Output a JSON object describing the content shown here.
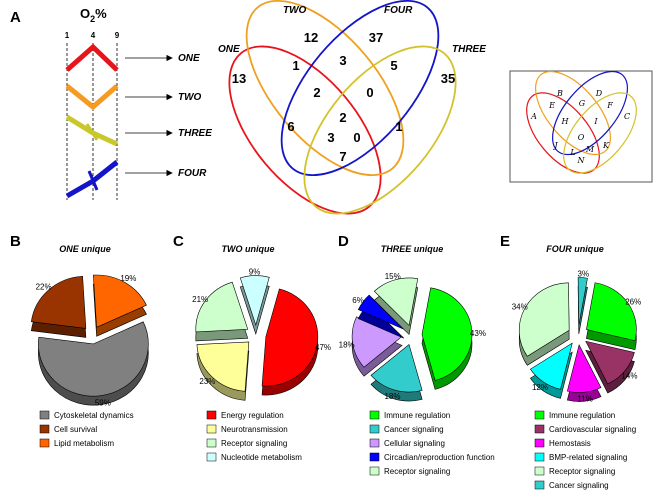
{
  "panel_letters": {
    "a": "A",
    "b": "B",
    "c": "C",
    "d": "D",
    "e": "E"
  },
  "oxygen": {
    "title": "O",
    "sub": "2",
    "suffix": "%",
    "ticks": [
      "1",
      "4",
      "9"
    ]
  },
  "patterns": [
    {
      "label": "ONE",
      "color": "#e8141b"
    },
    {
      "label": "TWO",
      "color": "#f79a21"
    },
    {
      "label": "THREE",
      "color": "#c8c82a"
    },
    {
      "label": "FOUR",
      "color": "#1414c8"
    }
  ],
  "venn": {
    "set_labels": [
      "ONE",
      "TWO",
      "FOUR",
      "THREE"
    ],
    "counts": [
      "13",
      "12",
      "37",
      "35",
      "1",
      "3",
      "5",
      "2",
      "0",
      "2",
      "6",
      "3",
      "0",
      "1",
      "7"
    ],
    "colors": {
      "ONE": "#e8141b",
      "TWO": "#f0a020",
      "FOUR": "#1414c8",
      "THREE": "#d4c22a"
    }
  },
  "inset_letters": [
    "A",
    "B",
    "C",
    "D",
    "E",
    "F",
    "G",
    "H",
    "I",
    "J",
    "K",
    "L",
    "M",
    "N",
    "O"
  ],
  "pies": [
    {
      "title": "ONE unique",
      "slices": [
        {
          "label": "Cytoskeletal dynamics",
          "pct": 59,
          "pct_text": "59%",
          "color": "#808080"
        },
        {
          "label": "Cell survival",
          "pct": 22,
          "pct_text": "22%",
          "color": "#993300"
        },
        {
          "label": "Lipid metabolism",
          "pct": 19,
          "pct_text": "19%",
          "color": "#ff6600"
        }
      ]
    },
    {
      "title": "TWO unique",
      "slices": [
        {
          "label": "Energy regulation",
          "pct": 47,
          "pct_text": "47%",
          "color": "#ff0000"
        },
        {
          "label": "Neurotransmission",
          "pct": 23,
          "pct_text": "23%",
          "color": "#ffff99"
        },
        {
          "label": "Receptor signaling",
          "pct": 21,
          "pct_text": "21%",
          "color": "#ccffcc"
        },
        {
          "label": "Nucleotide metabolism",
          "pct": 9,
          "pct_text": "9%",
          "color": "#ccffff"
        }
      ]
    },
    {
      "title": "THREE unique",
      "slices": [
        {
          "label": "Immune regulation",
          "pct": 43,
          "pct_text": "43%",
          "color": "#00ff00"
        },
        {
          "label": "Cancer signaling",
          "pct": 18,
          "pct_text": "18%",
          "color": "#33cccc"
        },
        {
          "label": "Cellular signaling",
          "pct": 18,
          "pct_text": "18%",
          "color": "#cc99ff"
        },
        {
          "label": "Circadian/reproduction function",
          "pct": 6,
          "pct_text": "6%",
          "color": "#0000ff"
        },
        {
          "label": "Receptor signaling",
          "pct": 15,
          "pct_text": "15%",
          "color": "#ccffcc"
        }
      ]
    },
    {
      "title": "FOUR unique",
      "slices": [
        {
          "label": "Immune regulation",
          "pct": 26,
          "pct_text": "26%",
          "color": "#00ff00"
        },
        {
          "label": "Cardiovascular signaling",
          "pct": 14,
          "pct_text": "14%",
          "color": "#993366"
        },
        {
          "label": "Hemostasis",
          "pct": 11,
          "pct_text": "11%",
          "color": "#ff00ff"
        },
        {
          "label": "BMP-related signaling",
          "pct": 12,
          "pct_text": "12%",
          "color": "#00ffff"
        },
        {
          "label": "Receptor signaling",
          "pct": 34,
          "pct_text": "34%",
          "color": "#ccffcc"
        },
        {
          "label": "Cancer signaling",
          "pct": 3,
          "pct_text": "3%",
          "color": "#33cccc"
        }
      ]
    }
  ]
}
